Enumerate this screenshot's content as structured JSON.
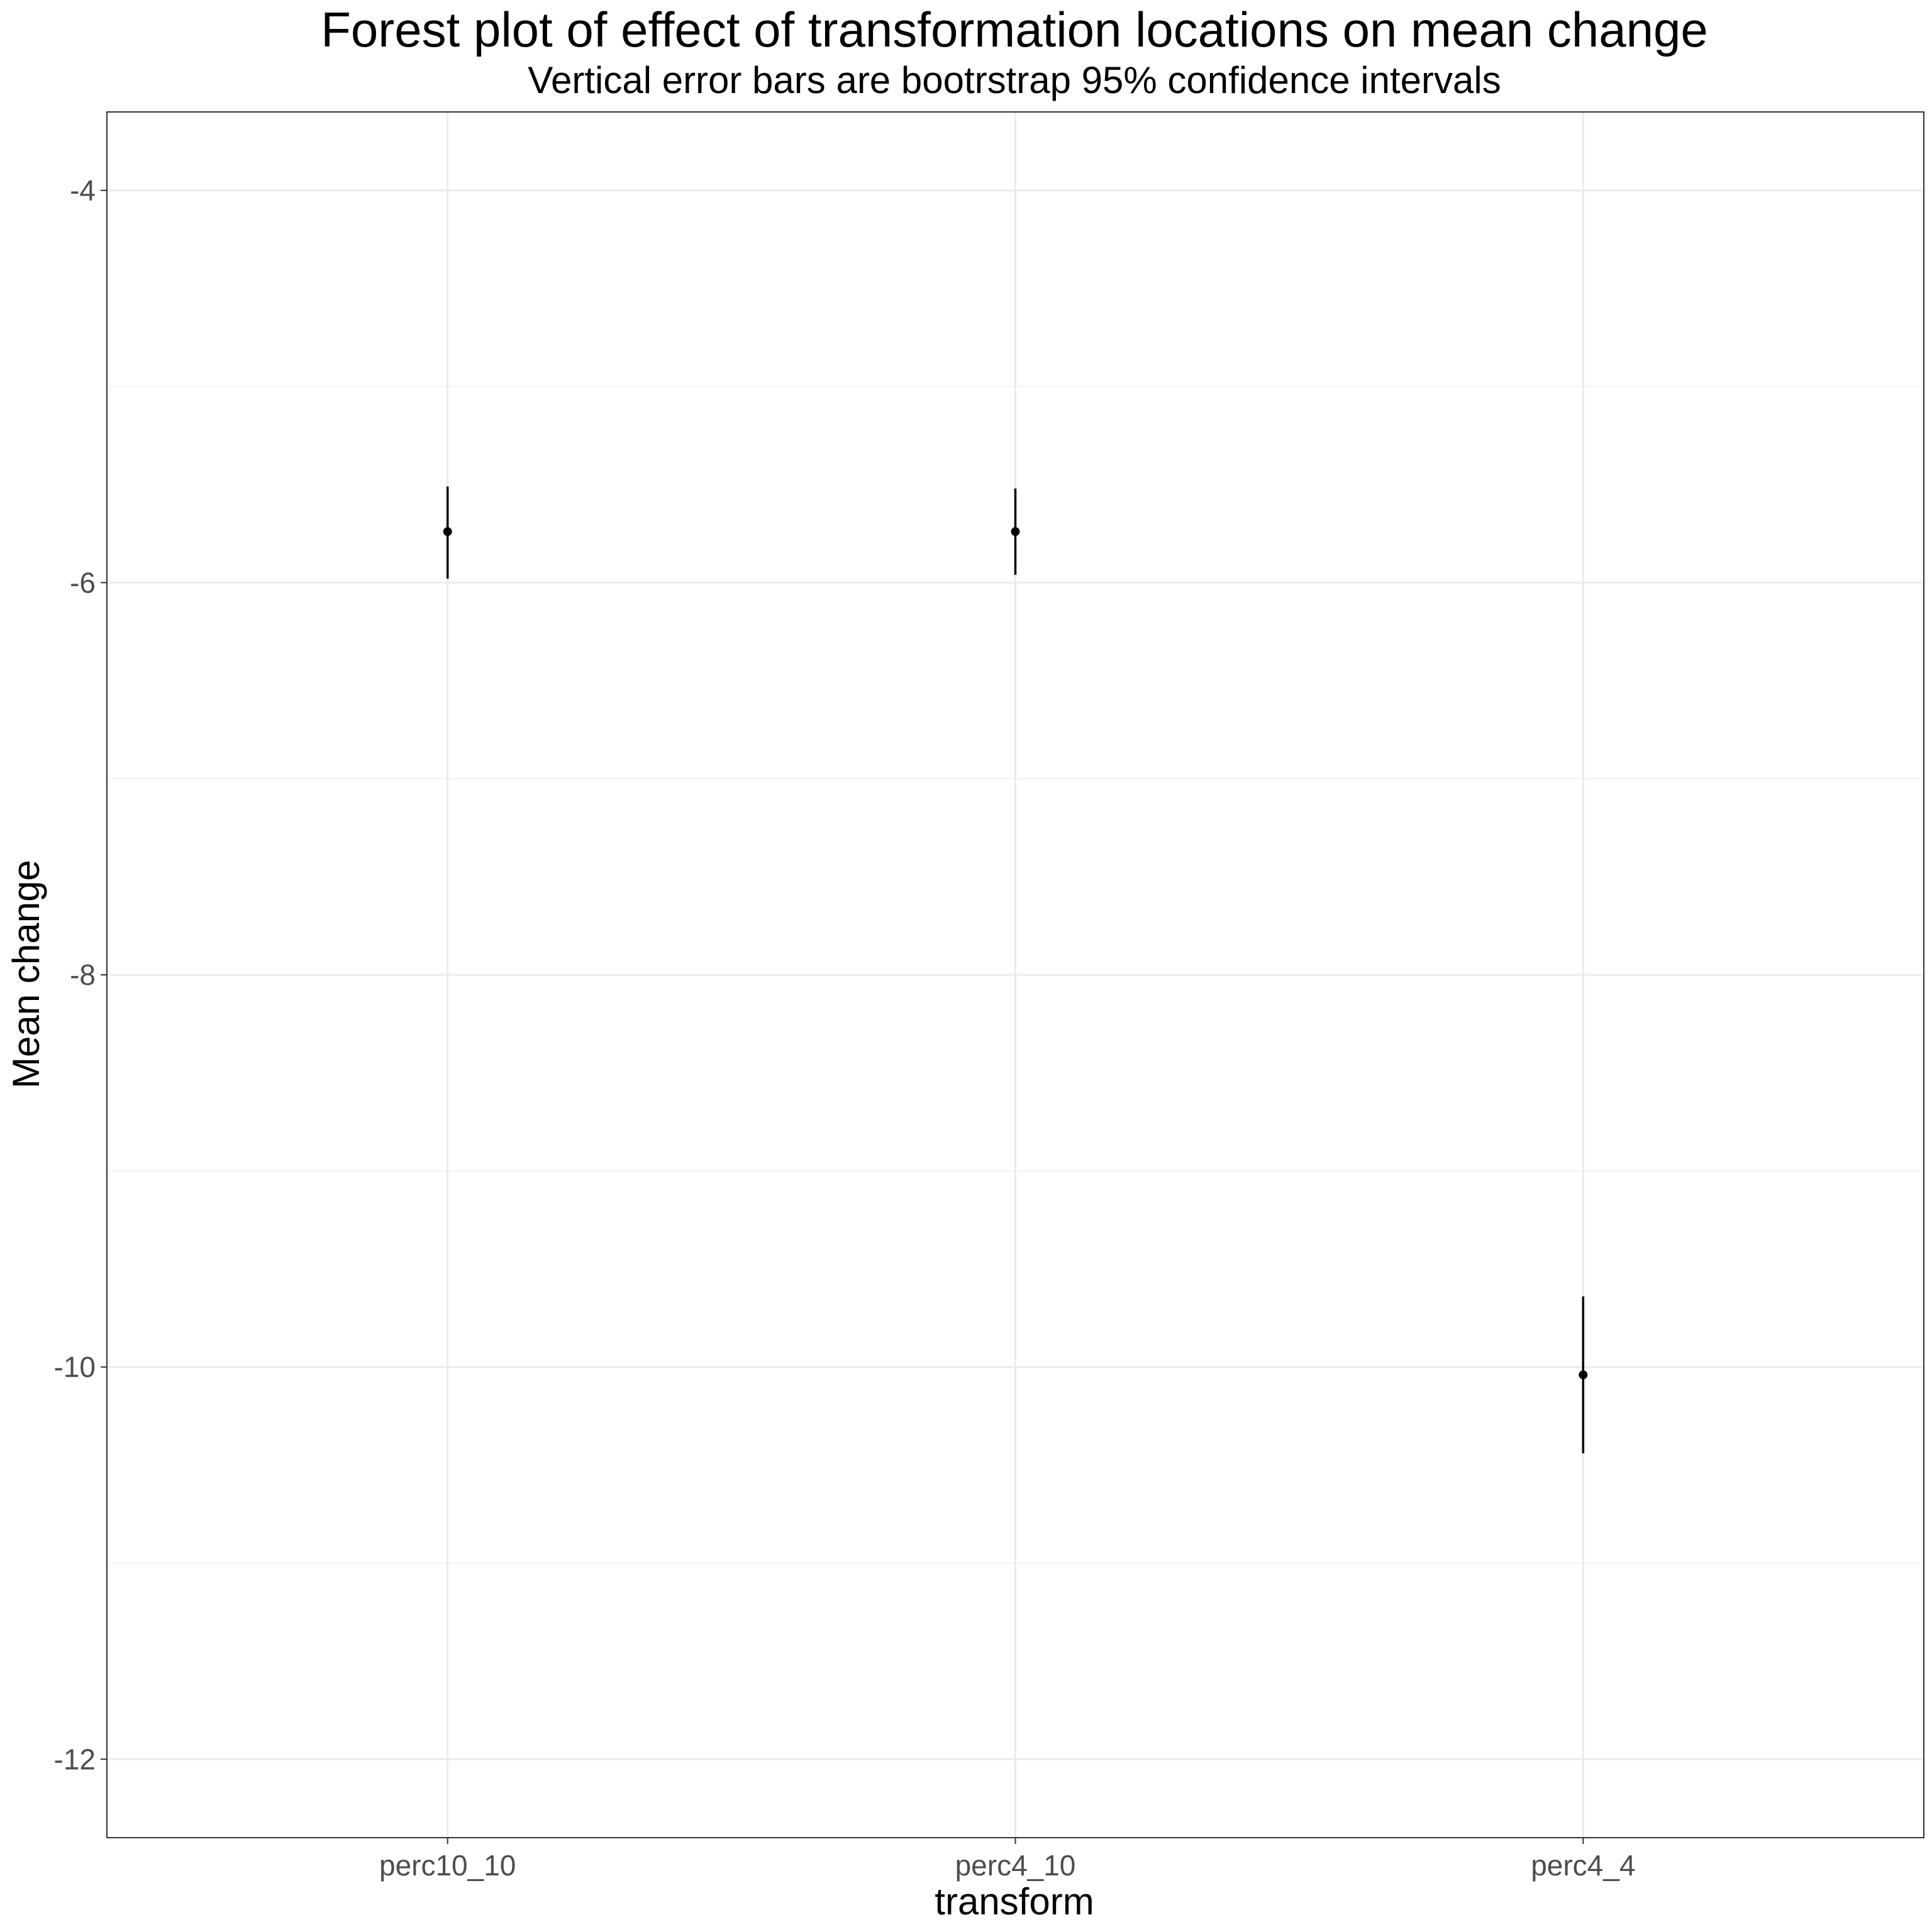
{
  "chart_data": {
    "type": "scatter",
    "title": "Forest plot of effect of transformation locations on mean change",
    "subtitle": "Vertical error bars are bootrstrap 95% confidence intervals",
    "xlabel": "transform",
    "ylabel": "Mean change",
    "categories": [
      "perc10_10",
      "perc4_10",
      "perc4_4"
    ],
    "values": [
      -5.74,
      -5.74,
      -10.04
    ],
    "ci_lower": [
      -5.98,
      -5.96,
      -10.44
    ],
    "ci_upper": [
      -5.51,
      -5.52,
      -9.64
    ],
    "ylim": [
      -12.4,
      -3.6
    ],
    "yticks": [
      -4,
      -6,
      -8,
      -10,
      -12
    ],
    "ytick_labels": [
      "-4",
      "-6",
      "-8",
      "-10",
      "-12"
    ],
    "grid": true,
    "legend": "none",
    "colors": {
      "marks": "#000000",
      "grid": "#ebebeb",
      "text": "#4d4d4d"
    }
  }
}
